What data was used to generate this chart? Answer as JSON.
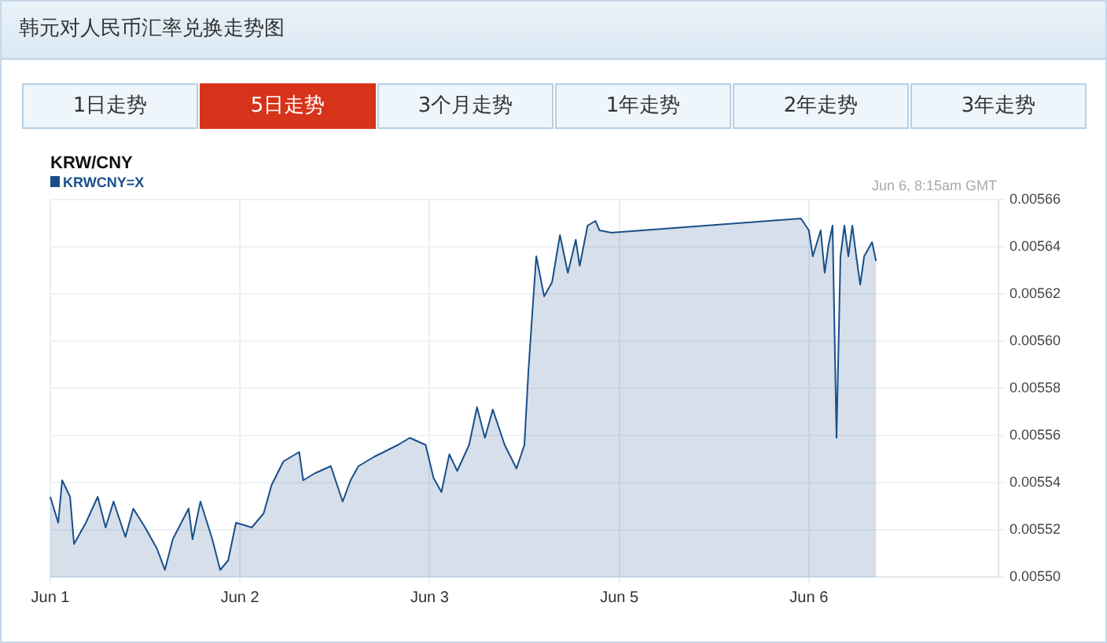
{
  "chart_data": {
    "type": "area",
    "title": "韩元对人民币汇率兑换走势图",
    "subtitle": "KRW/CNY",
    "annotations": [
      "1日走势",
      "5日走势",
      "3个月走势",
      "1年走势",
      "2年走势",
      "3年走势",
      "Jun 6, 8:15am GMT"
    ],
    "categories": [
      "Jun 1",
      null,
      null,
      null,
      null,
      null,
      null,
      null,
      null,
      null,
      null,
      null,
      null,
      null,
      null,
      null,
      null,
      null,
      null,
      null,
      null,
      null,
      null,
      null,
      null,
      null,
      null,
      null,
      null,
      null,
      null,
      null,
      null,
      null,
      null,
      null,
      null,
      null,
      null,
      null,
      null,
      null,
      null,
      null,
      null,
      null,
      null,
      null,
      "Jun 2",
      null,
      null,
      null,
      null,
      null,
      null,
      null,
      null,
      null,
      null,
      null,
      null,
      null,
      null,
      null,
      null,
      null,
      null,
      null,
      null,
      null,
      null,
      null,
      null,
      null,
      null,
      null,
      null,
      null,
      null,
      null,
      null,
      null,
      null,
      null,
      null,
      null,
      null,
      null,
      null,
      null,
      null,
      null,
      null,
      null,
      null,
      null,
      "Jun 3",
      null,
      null,
      null,
      null,
      null,
      null,
      null,
      null,
      null,
      null,
      null,
      null,
      null,
      null,
      null,
      null,
      null,
      null,
      null,
      null,
      null,
      null,
      null,
      null,
      null,
      null,
      null,
      null,
      null,
      null,
      null,
      null,
      null,
      null,
      null,
      null,
      null,
      null,
      null,
      null,
      null,
      null,
      null,
      null,
      null,
      null,
      null,
      "Jun 5",
      null,
      null,
      null,
      null,
      null,
      null,
      null,
      null,
      null,
      null,
      null,
      null,
      null,
      null,
      null,
      null,
      null,
      null,
      null,
      null,
      null,
      null,
      null,
      null,
      null,
      null,
      null,
      null,
      null,
      null,
      null,
      null,
      null,
      null,
      null,
      null,
      null,
      null,
      null,
      null,
      null,
      null,
      null,
      null,
      null,
      null,
      null,
      "Jun 6",
      null,
      null,
      null,
      null,
      null,
      null,
      null,
      null,
      null,
      null,
      null,
      null,
      null,
      null,
      null,
      null,
      null,
      null,
      null,
      null,
      null,
      null,
      null,
      null,
      null,
      null,
      null,
      null,
      null,
      null,
      null,
      null,
      null,
      null,
      null,
      null,
      null,
      null,
      null,
      null,
      null,
      null,
      null,
      null,
      null,
      null,
      null,
      null
    ],
    "ylim": [
      0.0055,
      0.00566
    ],
    "yticks": [
      {
        "value": 0.0055,
        "label": "0.00550"
      },
      {
        "value": 0.00552,
        "label": "0.00552"
      },
      {
        "value": 0.00554,
        "label": "0.00554"
      },
      {
        "value": 0.00556,
        "label": "0.00556"
      },
      {
        "value": 0.00558,
        "label": "0.00558"
      },
      {
        "value": 0.0056,
        "label": "0.00560"
      },
      {
        "value": 0.00562,
        "label": "0.00562"
      },
      {
        "value": 0.00564,
        "label": "0.00564"
      },
      {
        "value": 0.00566,
        "label": "0.00566"
      }
    ],
    "grid": true,
    "legend": "top left",
    "series": [
      {
        "name": "KRWCNY=X",
        "color": "#1a4f8a",
        "values": [
          0.005534,
          null,
          0.005523,
          0.005541,
          null,
          0.005534,
          0.005514,
          null,
          null,
          0.005523,
          null,
          null,
          0.005534,
          null,
          0.005521,
          null,
          0.005532,
          null,
          null,
          0.005517,
          null,
          0.005529,
          null,
          null,
          0.005521,
          null,
          null,
          0.005512,
          null,
          0.005503,
          null,
          0.005516,
          null,
          null,
          null,
          0.005529,
          0.005516,
          null,
          0.005532,
          null,
          null,
          0.005516,
          null,
          0.005503,
          null,
          0.005507,
          null,
          0.005523,
          null,
          null,
          null,
          0.005521,
          null,
          null,
          0.005527,
          null,
          0.005539,
          null,
          null,
          0.005549,
          null,
          null,
          null,
          0.005553,
          0.005541,
          null,
          null,
          0.005544,
          null,
          null,
          null,
          0.005547,
          null,
          null,
          0.005532,
          null,
          0.005541,
          null,
          0.005547,
          null,
          null,
          null,
          0.005551,
          null,
          null,
          null,
          null,
          null,
          0.005556,
          null,
          null,
          0.005559,
          null,
          null,
          null,
          0.005556,
          null,
          0.005542,
          null,
          0.005536,
          null,
          0.005552,
          null,
          0.005545,
          null,
          null,
          0.005556,
          null,
          0.005572,
          null,
          0.005559,
          null,
          0.005571,
          null,
          null,
          0.005556,
          null,
          null,
          0.005546,
          null,
          0.005556,
          0.005587,
          0.005612,
          0.005636,
          null,
          0.005619,
          null,
          0.005625,
          null,
          0.005645,
          null,
          0.005629,
          null,
          0.005643,
          0.005632,
          null,
          0.005649,
          null,
          0.005651,
          0.005647,
          null,
          null,
          0.005646,
          null,
          null,
          null,
          null,
          null,
          null,
          null,
          null,
          null,
          null,
          null,
          null,
          null,
          null,
          null,
          null,
          null,
          null,
          null,
          null,
          null,
          null,
          null,
          null,
          null,
          null,
          null,
          null,
          null,
          null,
          null,
          null,
          null,
          null,
          null,
          null,
          null,
          null,
          null,
          null,
          null,
          null,
          null,
          null,
          null,
          null,
          null,
          0.005652,
          null,
          0.005647,
          0.005636,
          null,
          0.005647,
          0.005629,
          0.005641,
          0.005649,
          0.005559,
          0.005636,
          0.005649,
          0.005636,
          0.005649,
          0.005636,
          0.005624,
          0.005636,
          null,
          0.005642,
          0.005634,
          null,
          null,
          null,
          null,
          null,
          null,
          null,
          null,
          null,
          null,
          null,
          null,
          null,
          null,
          null,
          null,
          null,
          null,
          null,
          null,
          null,
          null,
          null,
          null,
          null,
          null,
          null,
          null,
          null,
          null,
          null
        ]
      }
    ]
  }
}
